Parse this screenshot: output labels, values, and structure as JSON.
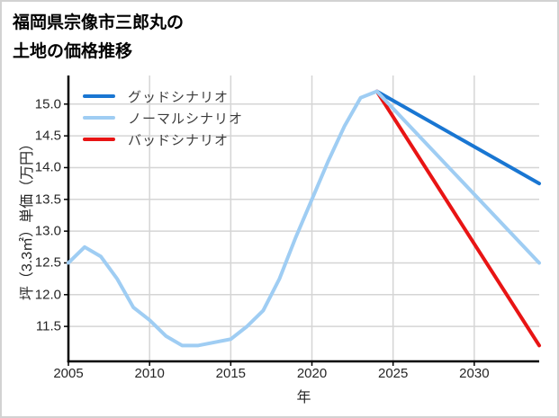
{
  "window": {
    "background": "#ffffff",
    "border_color": "#d2d2d2"
  },
  "title": {
    "line1": "福岡県宗像市三郎丸の",
    "line2": "土地の価格推移"
  },
  "colors": {
    "good": "#1976d2",
    "normal": "#9fcdf3",
    "bad": "#e81414",
    "grid": "#d5d5d5",
    "axis": "#000000",
    "tick_text": "#262626",
    "legend_text": "#3c3c3c"
  },
  "chart_data": {
    "type": "line",
    "title": "福岡県宗像市三郎丸の 土地の価格推移",
    "xlabel": "年",
    "ylabel": "坪（3.3㎡）単価（万円）",
    "xlim": [
      2005,
      2034
    ],
    "ylim": [
      10.95,
      15.45
    ],
    "grid": true,
    "legend_position": "upper-left",
    "x_ticks": [
      {
        "value": 2005,
        "label": "2005"
      },
      {
        "value": 2010,
        "label": "2010"
      },
      {
        "value": 2015,
        "label": "2015"
      },
      {
        "value": 2020,
        "label": "2020"
      },
      {
        "value": 2025,
        "label": "2025"
      },
      {
        "value": 2030,
        "label": "2030"
      }
    ],
    "y_ticks": [
      {
        "value": 11.5,
        "label": "11.5"
      },
      {
        "value": 12.0,
        "label": "12.0"
      },
      {
        "value": 12.5,
        "label": "12.5"
      },
      {
        "value": 13.0,
        "label": "13.0"
      },
      {
        "value": 13.5,
        "label": "13.5"
      },
      {
        "value": 14.0,
        "label": "14.0"
      },
      {
        "value": 14.5,
        "label": "14.5"
      },
      {
        "value": 15.0,
        "label": "15.0"
      }
    ],
    "series": [
      {
        "key": "good-scenario",
        "name": "グッドシナリオ",
        "color": "#1976d2",
        "x": [
          2024,
          2034
        ],
        "values": [
          15.2,
          13.75
        ]
      },
      {
        "key": "normal-scenario",
        "name": "ノーマルシナリオ",
        "color": "#9fcdf3",
        "x": [
          2005,
          2006,
          2007,
          2008,
          2009,
          2010,
          2011,
          2012,
          2013,
          2014,
          2015,
          2016,
          2017,
          2018,
          2019,
          2020,
          2021,
          2022,
          2023,
          2024,
          2034
        ],
        "values": [
          12.5,
          12.75,
          12.6,
          12.25,
          11.8,
          11.6,
          11.35,
          11.2,
          11.2,
          11.25,
          11.3,
          11.5,
          11.75,
          12.25,
          12.9,
          13.5,
          14.1,
          14.65,
          15.1,
          15.2,
          12.5
        ]
      },
      {
        "key": "bad-scenario",
        "name": "バッドシナリオ",
        "color": "#e81414",
        "x": [
          2024,
          2034
        ],
        "values": [
          15.2,
          11.2
        ]
      }
    ]
  }
}
